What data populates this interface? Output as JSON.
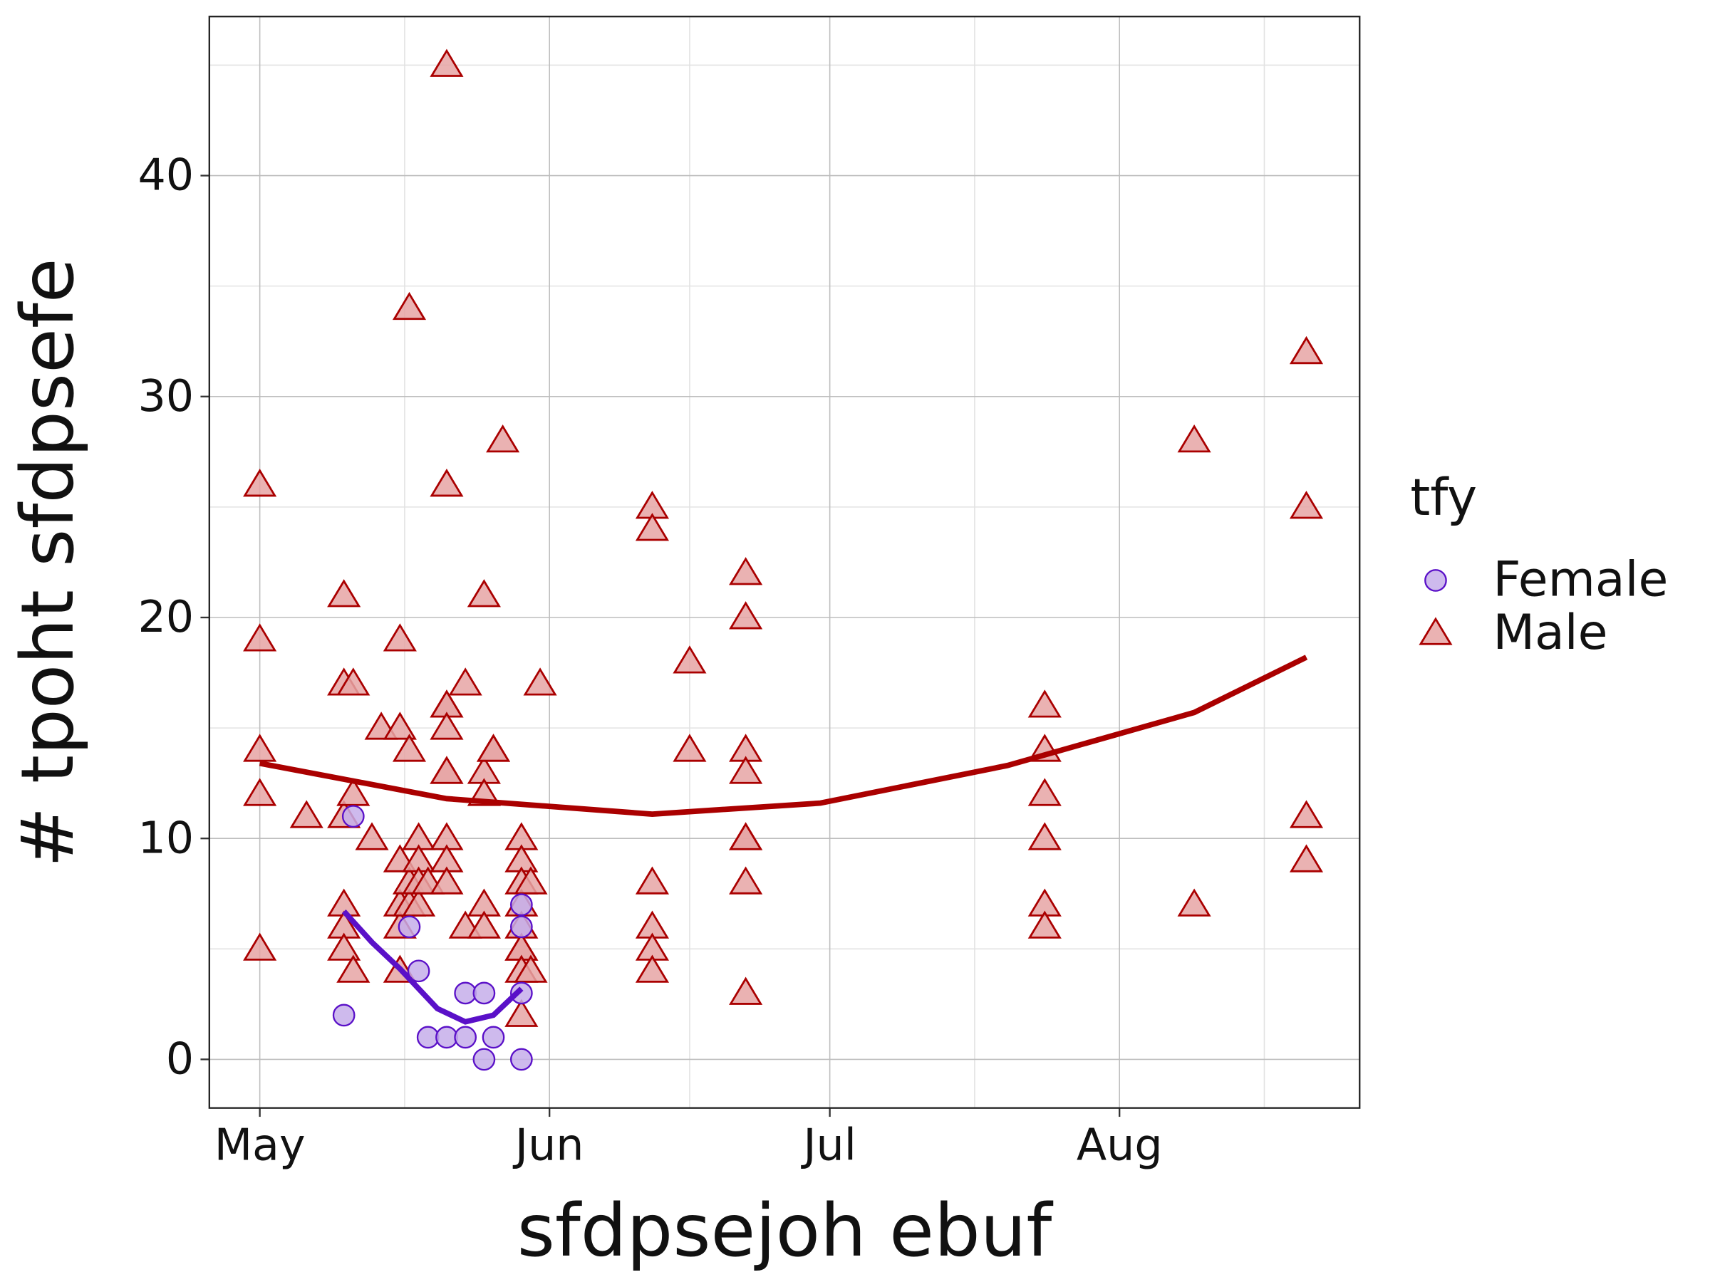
{
  "chart_data": {
    "type": "scatter",
    "x_label": "sfdpsejoh ebuf",
    "y_label": "# tpoht sfdpsefe",
    "legend_title": "tfy",
    "xlim": [
      -5.4,
      117.7
    ],
    "ylim": [
      -2.2,
      47.2
    ],
    "xticks": [
      {
        "value": 0,
        "label": "May"
      },
      {
        "value": 31,
        "label": "Jun"
      },
      {
        "value": 61,
        "label": "Jul"
      },
      {
        "value": 92,
        "label": "Aug"
      }
    ],
    "xminor": [
      15.5,
      46,
      76.5,
      107.5
    ],
    "yticks": [
      0,
      10,
      20,
      30,
      40
    ],
    "yminor": [
      5,
      15,
      25,
      35,
      45
    ],
    "grid": true,
    "legend": "right",
    "series": [
      {
        "name": "Female",
        "marker": "circle",
        "color": "#5a10c8",
        "fill": "#c6aeea",
        "x": [
          9,
          10,
          16,
          17,
          18,
          20,
          22,
          22,
          24,
          24,
          25,
          28,
          28,
          28,
          28
        ],
        "values": [
          2,
          11,
          6,
          4,
          1,
          1,
          3,
          1,
          3,
          0,
          1,
          7,
          6,
          3,
          0
        ],
        "fit": {
          "x": [
            9,
            12,
            15,
            19,
            22,
            25,
            28
          ],
          "y": [
            6.7,
            5.3,
            4.1,
            2.3,
            1.7,
            2.0,
            3.2
          ]
        }
      },
      {
        "name": "Male",
        "marker": "triangle",
        "color": "#aa0000",
        "fill": "#e6a4a4",
        "x": [
          0,
          0,
          0,
          0,
          0,
          5,
          9,
          9,
          9,
          9,
          9,
          9,
          10,
          10,
          10,
          12,
          13,
          15,
          15,
          15,
          15,
          15,
          15,
          16,
          16,
          16,
          16,
          17,
          17,
          17,
          17,
          18,
          20,
          20,
          20,
          20,
          20,
          20,
          20,
          20,
          20,
          20,
          22,
          22,
          24,
          24,
          24,
          24,
          24,
          25,
          25,
          26,
          28,
          28,
          28,
          28,
          28,
          28,
          28,
          28,
          28,
          29,
          29,
          30,
          42,
          42,
          42,
          42,
          42,
          42,
          46,
          46,
          52,
          52,
          52,
          52,
          52,
          52,
          52,
          52,
          84,
          84,
          84,
          84,
          84,
          84,
          100,
          100,
          112,
          112,
          112,
          112
        ],
        "values": [
          26,
          19,
          14,
          12,
          5,
          11,
          21,
          17,
          11,
          7,
          6,
          5,
          17,
          12,
          4,
          10,
          15,
          19,
          15,
          9,
          7,
          6,
          4,
          34,
          14,
          8,
          7,
          10,
          9,
          8,
          7,
          8,
          45,
          26,
          16,
          16,
          15,
          13,
          13,
          10,
          9,
          8,
          17,
          6,
          21,
          13,
          12,
          7,
          6,
          14,
          14,
          28,
          10,
          9,
          8,
          7,
          6,
          5,
          5,
          4,
          2,
          8,
          4,
          17,
          25,
          24,
          8,
          6,
          5,
          4,
          18,
          14,
          22,
          20,
          14,
          13,
          10,
          10,
          8,
          3,
          16,
          14,
          12,
          10,
          7,
          6,
          28,
          7,
          32,
          25,
          11,
          9
        ],
        "fit": {
          "x": [
            0,
            20,
            42,
            60,
            80,
            100,
            112
          ],
          "y": [
            13.4,
            11.8,
            11.1,
            11.6,
            13.3,
            15.7,
            18.2
          ]
        }
      }
    ]
  }
}
